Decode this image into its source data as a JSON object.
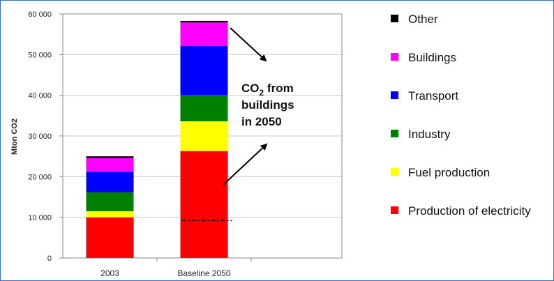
{
  "chart_data": {
    "type": "bar",
    "stacked": true,
    "categories": [
      "2003",
      "Baseline 2050"
    ],
    "ylabel": "Mton CO2",
    "ylim": [
      0,
      60000
    ],
    "yticks": [
      "0",
      "10 000",
      "20 000",
      "30 000",
      "40 000",
      "50 000",
      "60 000"
    ],
    "ytick_values": [
      0,
      10000,
      20000,
      30000,
      40000,
      50000,
      60000
    ],
    "grid": true,
    "legend_position": "right",
    "series": [
      {
        "name": "Production of electricity",
        "color": "#ff0000",
        "values": [
          10000,
          26300
        ]
      },
      {
        "name": "Fuel production",
        "color": "#ffff00",
        "values": [
          1500,
          7300
        ]
      },
      {
        "name": "Industry",
        "color": "#008000",
        "values": [
          4700,
          6500
        ]
      },
      {
        "name": "Transport",
        "color": "#0000ff",
        "values": [
          5000,
          12000
        ]
      },
      {
        "name": "Buildings",
        "color": "#ff00ff",
        "values": [
          3400,
          5800
        ]
      },
      {
        "name": "Other",
        "color": "#000000",
        "values": [
          400,
          400
        ]
      }
    ],
    "annotation": {
      "line1_main": "CO",
      "line1_sub": "2",
      "line1_rest": " from",
      "line2": "buildings",
      "line3": "in 2050"
    },
    "dashed_marker_value": 9200
  }
}
